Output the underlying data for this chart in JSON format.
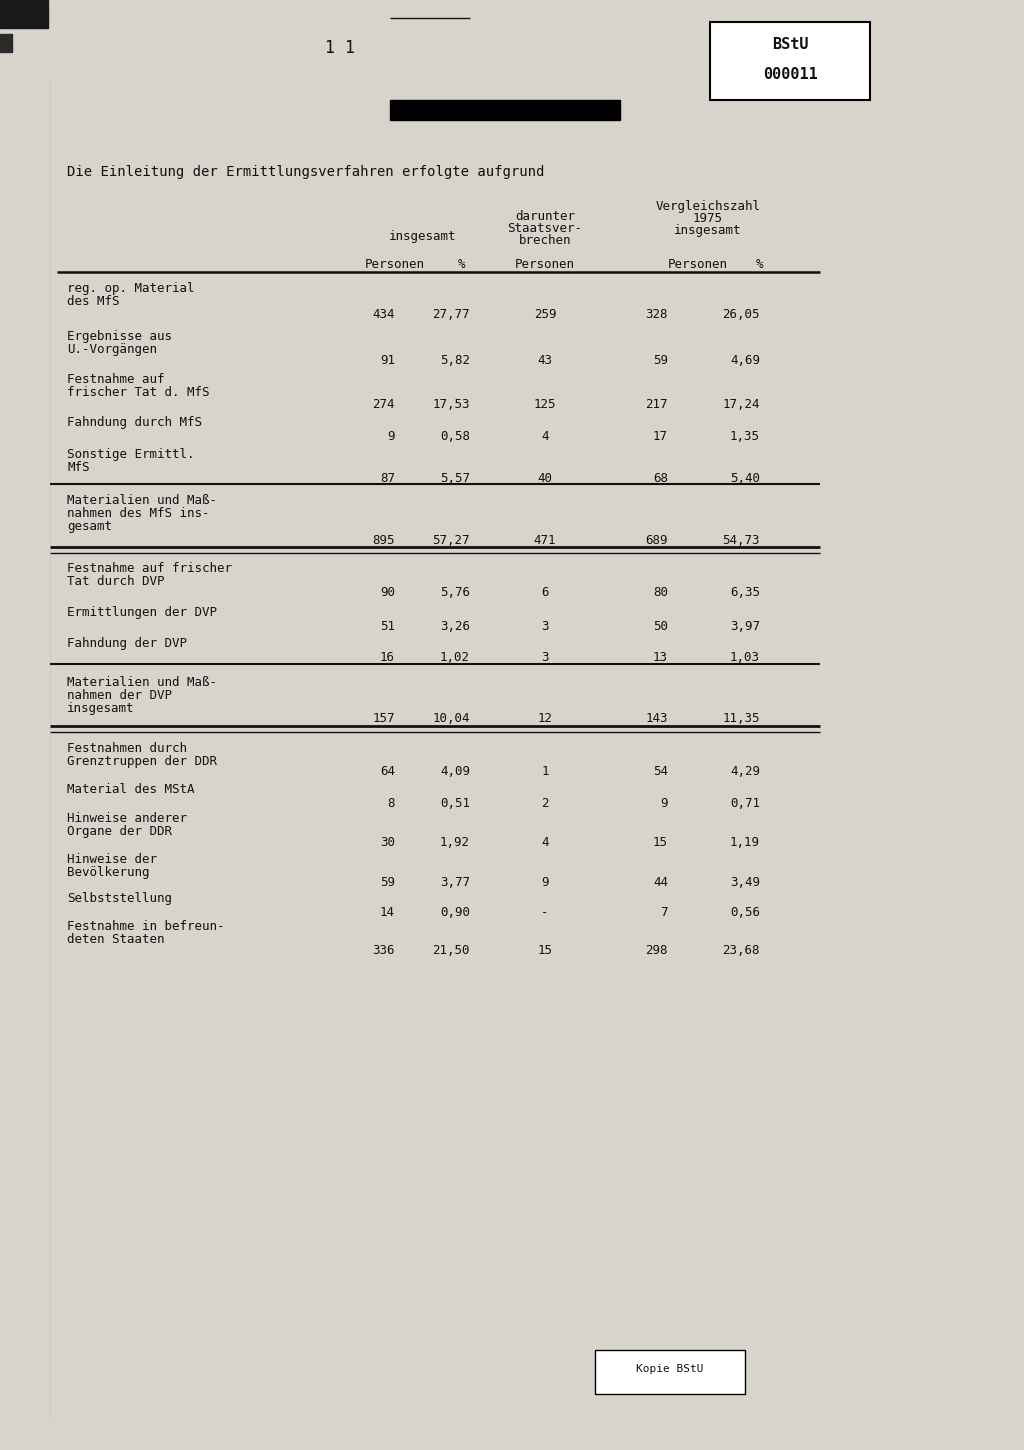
{
  "page_number": "1 1",
  "intro_text": "Die Einleitung der Ermittlungsverfahren erfolgte aufgrund",
  "rows": [
    {
      "label": [
        "reg. op. Material",
        "des MfS"
      ],
      "persons": "434",
      "pct": "27,77",
      "darunter": "259",
      "v_persons": "328",
      "v_pct": "26,05",
      "separator_after": false,
      "bold_sep": false,
      "double_sep_before": false
    },
    {
      "label": [
        "Ergebnisse aus",
        "U.-Vorgängen"
      ],
      "persons": "91",
      "pct": "5,82",
      "darunter": "43",
      "v_persons": "59",
      "v_pct": "4,69",
      "separator_after": false,
      "bold_sep": false,
      "double_sep_before": false
    },
    {
      "label": [
        "Festnahme auf",
        "frischer Tat d. MfS"
      ],
      "persons": "274",
      "pct": "17,53",
      "darunter": "125",
      "v_persons": "217",
      "v_pct": "17,24",
      "separator_after": false,
      "bold_sep": false,
      "double_sep_before": false
    },
    {
      "label": [
        "Fahndung durch MfS"
      ],
      "persons": "9",
      "pct": "0,58",
      "darunter": "4",
      "v_persons": "17",
      "v_pct": "1,35",
      "separator_after": false,
      "bold_sep": false,
      "double_sep_before": false
    },
    {
      "label": [
        "Sonstige Ermittl.",
        "MfS"
      ],
      "persons": "87",
      "pct": "5,57",
      "darunter": "40",
      "v_persons": "68",
      "v_pct": "5,40",
      "separator_after": true,
      "bold_sep": false,
      "double_sep_before": false
    },
    {
      "label": [
        "Materialien und Maß-",
        "nahmen des MfS ins-",
        "gesamt"
      ],
      "persons": "895",
      "pct": "57,27",
      "darunter": "471",
      "v_persons": "689",
      "v_pct": "54,73",
      "separator_after": true,
      "bold_sep": true,
      "double_sep_before": false
    },
    {
      "label": [
        "Festnahme auf frischer",
        "Tat durch DVP"
      ],
      "persons": "90",
      "pct": "5,76",
      "darunter": "6",
      "v_persons": "80",
      "v_pct": "6,35",
      "separator_after": false,
      "bold_sep": false,
      "double_sep_before": false
    },
    {
      "label": [
        "Ermittlungen der DVP"
      ],
      "persons": "51",
      "pct": "3,26",
      "darunter": "3",
      "v_persons": "50",
      "v_pct": "3,97",
      "separator_after": false,
      "bold_sep": false,
      "double_sep_before": false
    },
    {
      "label": [
        "Fahndung der DVP"
      ],
      "persons": "16",
      "pct": "1,02",
      "darunter": "3",
      "v_persons": "13",
      "v_pct": "1,03",
      "separator_after": true,
      "bold_sep": false,
      "double_sep_before": false
    },
    {
      "label": [
        "Materialien und Maß-",
        "nahmen der DVP",
        "insgesamt"
      ],
      "persons": "157",
      "pct": "10,04",
      "darunter": "12",
      "v_persons": "143",
      "v_pct": "11,35",
      "separator_after": true,
      "bold_sep": true,
      "double_sep_before": false
    },
    {
      "label": [
        "Festnahmen durch",
        "Grenztruppen der DDR"
      ],
      "persons": "64",
      "pct": "4,09",
      "darunter": "1",
      "v_persons": "54",
      "v_pct": "4,29",
      "separator_after": false,
      "bold_sep": false,
      "double_sep_before": false
    },
    {
      "label": [
        "Material des MStA"
      ],
      "persons": "8",
      "pct": "0,51",
      "darunter": "2",
      "v_persons": "9",
      "v_pct": "0,71",
      "separator_after": false,
      "bold_sep": false,
      "double_sep_before": false
    },
    {
      "label": [
        "Hinweise anderer",
        "Organe der DDR"
      ],
      "persons": "30",
      "pct": "1,92",
      "darunter": "4",
      "v_persons": "15",
      "v_pct": "1,19",
      "separator_after": false,
      "bold_sep": false,
      "double_sep_before": false
    },
    {
      "label": [
        "Hinweise der",
        "Bevölkerung"
      ],
      "persons": "59",
      "pct": "3,77",
      "darunter": "9",
      "v_persons": "44",
      "v_pct": "3,49",
      "separator_after": false,
      "bold_sep": false,
      "double_sep_before": false
    },
    {
      "label": [
        "Selbststellung"
      ],
      "persons": "14",
      "pct": "0,90",
      "darunter": "-",
      "v_persons": "7",
      "v_pct": "0,56",
      "separator_after": false,
      "bold_sep": false,
      "double_sep_before": false
    },
    {
      "label": [
        "Festnahme in befreun-",
        "deten Staaten"
      ],
      "persons": "336",
      "pct": "21,50",
      "darunter": "15",
      "v_persons": "298",
      "v_pct": "23,68",
      "separator_after": false,
      "bold_sep": false,
      "double_sep_before": false
    }
  ],
  "bg_color": "#d8d4cc",
  "text_color": "#111111",
  "line_color": "#111111"
}
